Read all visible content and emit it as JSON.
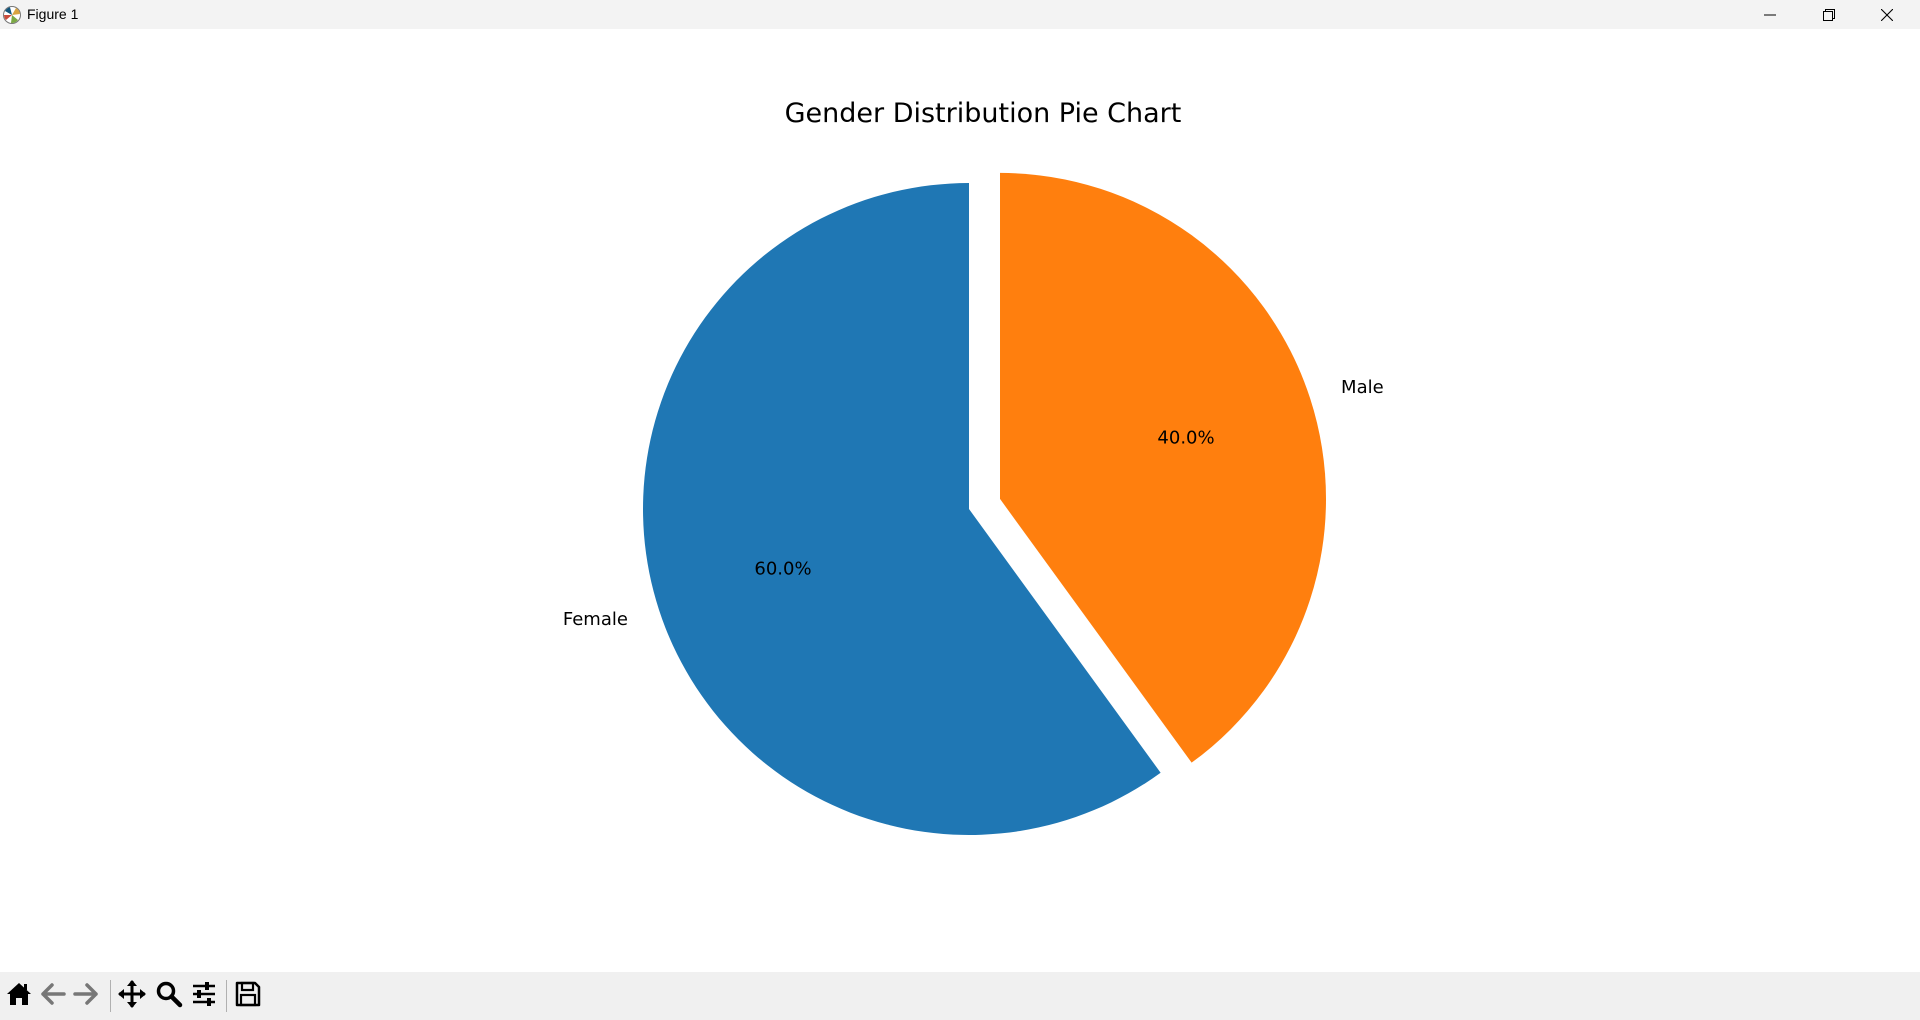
{
  "window": {
    "title": "Figure 1"
  },
  "icons": {
    "app": "matplotlib-icon",
    "minimize": "minimize-icon",
    "restore": "restore-icon",
    "close": "close-icon"
  },
  "toolbar": {
    "tools": [
      {
        "name": "home-icon"
      },
      {
        "name": "back-arrow-icon"
      },
      {
        "name": "forward-arrow-icon"
      },
      {
        "name": "pan-move-icon"
      },
      {
        "name": "zoom-magnifier-icon"
      },
      {
        "name": "configure-subplots-icon"
      },
      {
        "name": "save-floppy-icon"
      }
    ]
  },
  "chart_data": {
    "type": "pie",
    "title": "Gender Distribution Pie Chart",
    "startangle": 90,
    "explode": [
      0,
      0.1
    ],
    "slices": [
      {
        "label": "Female",
        "value": 60.0,
        "pct_label": "60.0%",
        "color": "#1f77b4"
      },
      {
        "label": "Male",
        "value": 40.0,
        "pct_label": "40.0%",
        "color": "#ff7f0e"
      }
    ]
  }
}
